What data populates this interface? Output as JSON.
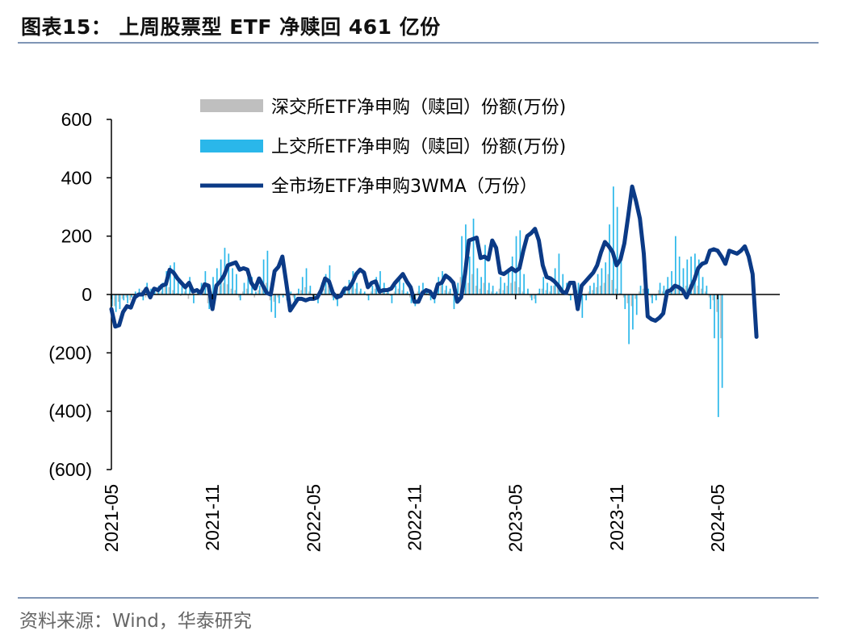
{
  "figure": {
    "title": "图表15：  上周股票型 ETF 净赎回 461 亿份",
    "source": "资料来源：Wind，华泰研究"
  },
  "colors": {
    "sz_bar": "#bfbfbf",
    "sh_bar": "#2ab7ea",
    "wma_line": "#0b3a86",
    "axis": "#000000",
    "rule": "#7f95b5"
  },
  "chart_data": {
    "type": "bar",
    "title": "",
    "xlabel": "",
    "ylabel": "",
    "ylim": [
      -600,
      600
    ],
    "y_ticks": [
      600,
      400,
      200,
      0,
      -200,
      -400,
      -600
    ],
    "y_tick_labels": [
      "600",
      "400",
      "200",
      "0",
      "(200)",
      "(400)",
      "(600)"
    ],
    "x_tick_labels": [
      "2021-05",
      "2021-11",
      "2022-05",
      "2022-11",
      "2023-05",
      "2023-11",
      "2024-05"
    ],
    "x_tick_positions": [
      0,
      26,
      52,
      78,
      104,
      130,
      156
    ],
    "x_range": [
      0,
      172
    ],
    "grid": false,
    "legend_position": "top-left",
    "series": [
      {
        "name": "深交所ETF净申购（赎回）份额(万份)",
        "type": "bar",
        "values": [
          -60,
          -40,
          -25,
          -15,
          -10,
          -20,
          -5,
          5,
          15,
          -10,
          10,
          5,
          20,
          10,
          35,
          25,
          15,
          5,
          -5,
          10,
          -15,
          5,
          0,
          15,
          10,
          -30,
          10,
          20,
          30,
          40,
          35,
          20,
          15,
          -10,
          10,
          20,
          5,
          -10,
          15,
          30,
          40,
          -20,
          -25,
          -10,
          0,
          -5,
          5,
          -10,
          5,
          15,
          25,
          10,
          -5,
          -15,
          10,
          20,
          30,
          -10,
          -20,
          5,
          10,
          15,
          30,
          20,
          10,
          5,
          -5,
          10,
          20,
          25,
          15,
          5,
          -5,
          10,
          20,
          15,
          5,
          -10,
          -15,
          10,
          15,
          5,
          -5,
          -10,
          20,
          30,
          15,
          10,
          -5,
          20,
          60,
          50,
          40,
          70,
          30,
          20,
          40,
          15,
          10,
          5,
          20,
          15,
          30,
          40,
          45,
          25,
          10,
          0,
          -10,
          -15,
          5,
          20,
          15,
          10,
          30,
          40,
          25,
          15,
          -5,
          10,
          15,
          -20,
          -5,
          10,
          15,
          25,
          30,
          40,
          70,
          50,
          20,
          5,
          -10,
          -30,
          -40,
          -15,
          10,
          20,
          5,
          -10,
          -5,
          15,
          10,
          20,
          25,
          30,
          20,
          25,
          30,
          35,
          40,
          30,
          20,
          10,
          -10,
          -20,
          -60,
          -150
        ],
        "note_values_in_units": "万份"
      },
      {
        "name": "上交所ETF净申购（赎回）份额(万份)",
        "type": "bar",
        "values": [
          -40,
          -60,
          -50,
          -20,
          -30,
          -10,
          10,
          20,
          -20,
          40,
          20,
          10,
          30,
          40,
          80,
          100,
          110,
          60,
          30,
          20,
          60,
          -30,
          20,
          40,
          80,
          -50,
          60,
          90,
          120,
          160,
          140,
          90,
          70,
          -20,
          40,
          80,
          60,
          10,
          30,
          120,
          150,
          -60,
          -80,
          -30,
          -10,
          -20,
          10,
          -20,
          20,
          60,
          90,
          30,
          -10,
          -30,
          40,
          70,
          100,
          -20,
          -40,
          10,
          30,
          50,
          80,
          40,
          20,
          10,
          -20,
          30,
          60,
          80,
          40,
          10,
          -30,
          30,
          60,
          40,
          10,
          -30,
          -40,
          30,
          40,
          10,
          -20,
          -30,
          60,
          80,
          30,
          20,
          -50,
          40,
          200,
          240,
          130,
          260,
          90,
          60,
          170,
          40,
          30,
          10,
          60,
          40,
          90,
          130,
          200,
          220,
          70,
          20,
          -20,
          -30,
          20,
          60,
          40,
          30,
          90,
          140,
          70,
          40,
          -20,
          30,
          40,
          -80,
          -20,
          30,
          40,
          70,
          90,
          110,
          240,
          370,
          300,
          140,
          -50,
          -170,
          -120,
          -70,
          30,
          60,
          20,
          -30,
          -20,
          40,
          30,
          60,
          80,
          200,
          130,
          90,
          120,
          130,
          140,
          120,
          60,
          30,
          -50,
          -150,
          -420,
          -320
        ],
        "note_values_in_units": "万份"
      },
      {
        "name": "全市场ETF净申购3WMA（万份）",
        "type": "line",
        "values": [
          -50,
          -110,
          -105,
          -60,
          -40,
          -45,
          -10,
          0,
          0,
          20,
          -10,
          20,
          15,
          30,
          35,
          85,
          75,
          55,
          40,
          25,
          40,
          10,
          15,
          5,
          35,
          30,
          -50,
          30,
          45,
          65,
          100,
          105,
          110,
          85,
          90,
          85,
          40,
          20,
          55,
          30,
          5,
          0,
          80,
          95,
          130,
          40,
          -55,
          -35,
          -15,
          -15,
          -20,
          -15,
          -15,
          -10,
          15,
          55,
          45,
          5,
          -10,
          -5,
          20,
          20,
          40,
          70,
          85,
          75,
          25,
          40,
          45,
          10,
          15,
          15,
          20,
          40,
          55,
          70,
          45,
          25,
          -25,
          -25,
          5,
          15,
          10,
          -10,
          35,
          40,
          65,
          55,
          40,
          -25,
          -10,
          70,
          185,
          190,
          195,
          125,
          130,
          120,
          185,
          160,
          75,
          70,
          80,
          90,
          80,
          90,
          150,
          200,
          210,
          225,
          185,
          100,
          60,
          55,
          45,
          30,
          10,
          5,
          40,
          40,
          -50,
          30,
          45,
          60,
          75,
          100,
          145,
          180,
          165,
          145,
          100,
          120,
          175,
          270,
          370,
          320,
          260,
          140,
          -75,
          -85,
          -90,
          -80,
          -65,
          10,
          15,
          30,
          25,
          15,
          -10,
          20,
          50,
          90,
          105,
          110,
          150,
          155,
          150,
          130,
          105,
          150,
          145,
          140,
          150,
          165,
          130,
          70,
          -145
        ]
      }
    ]
  }
}
